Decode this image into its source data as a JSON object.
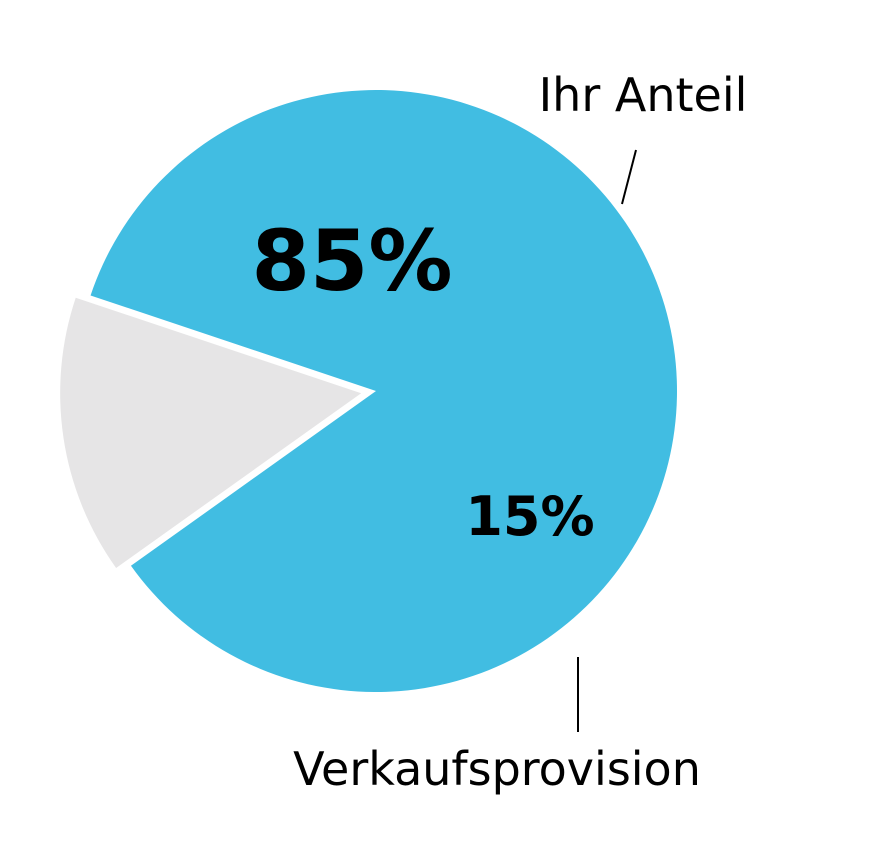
{
  "chart_data": {
    "type": "pie",
    "title": "",
    "slices": [
      {
        "label": "Ihr Anteil",
        "value": 85,
        "value_label": "85%",
        "color": "#41bde2",
        "exploded": false
      },
      {
        "label": "Verkaufsprovision",
        "value": 15,
        "value_label": "15%",
        "color": "#e6e5e6",
        "exploded": true
      }
    ],
    "legend": "none",
    "label_style": "callout-with-leader-lines"
  }
}
